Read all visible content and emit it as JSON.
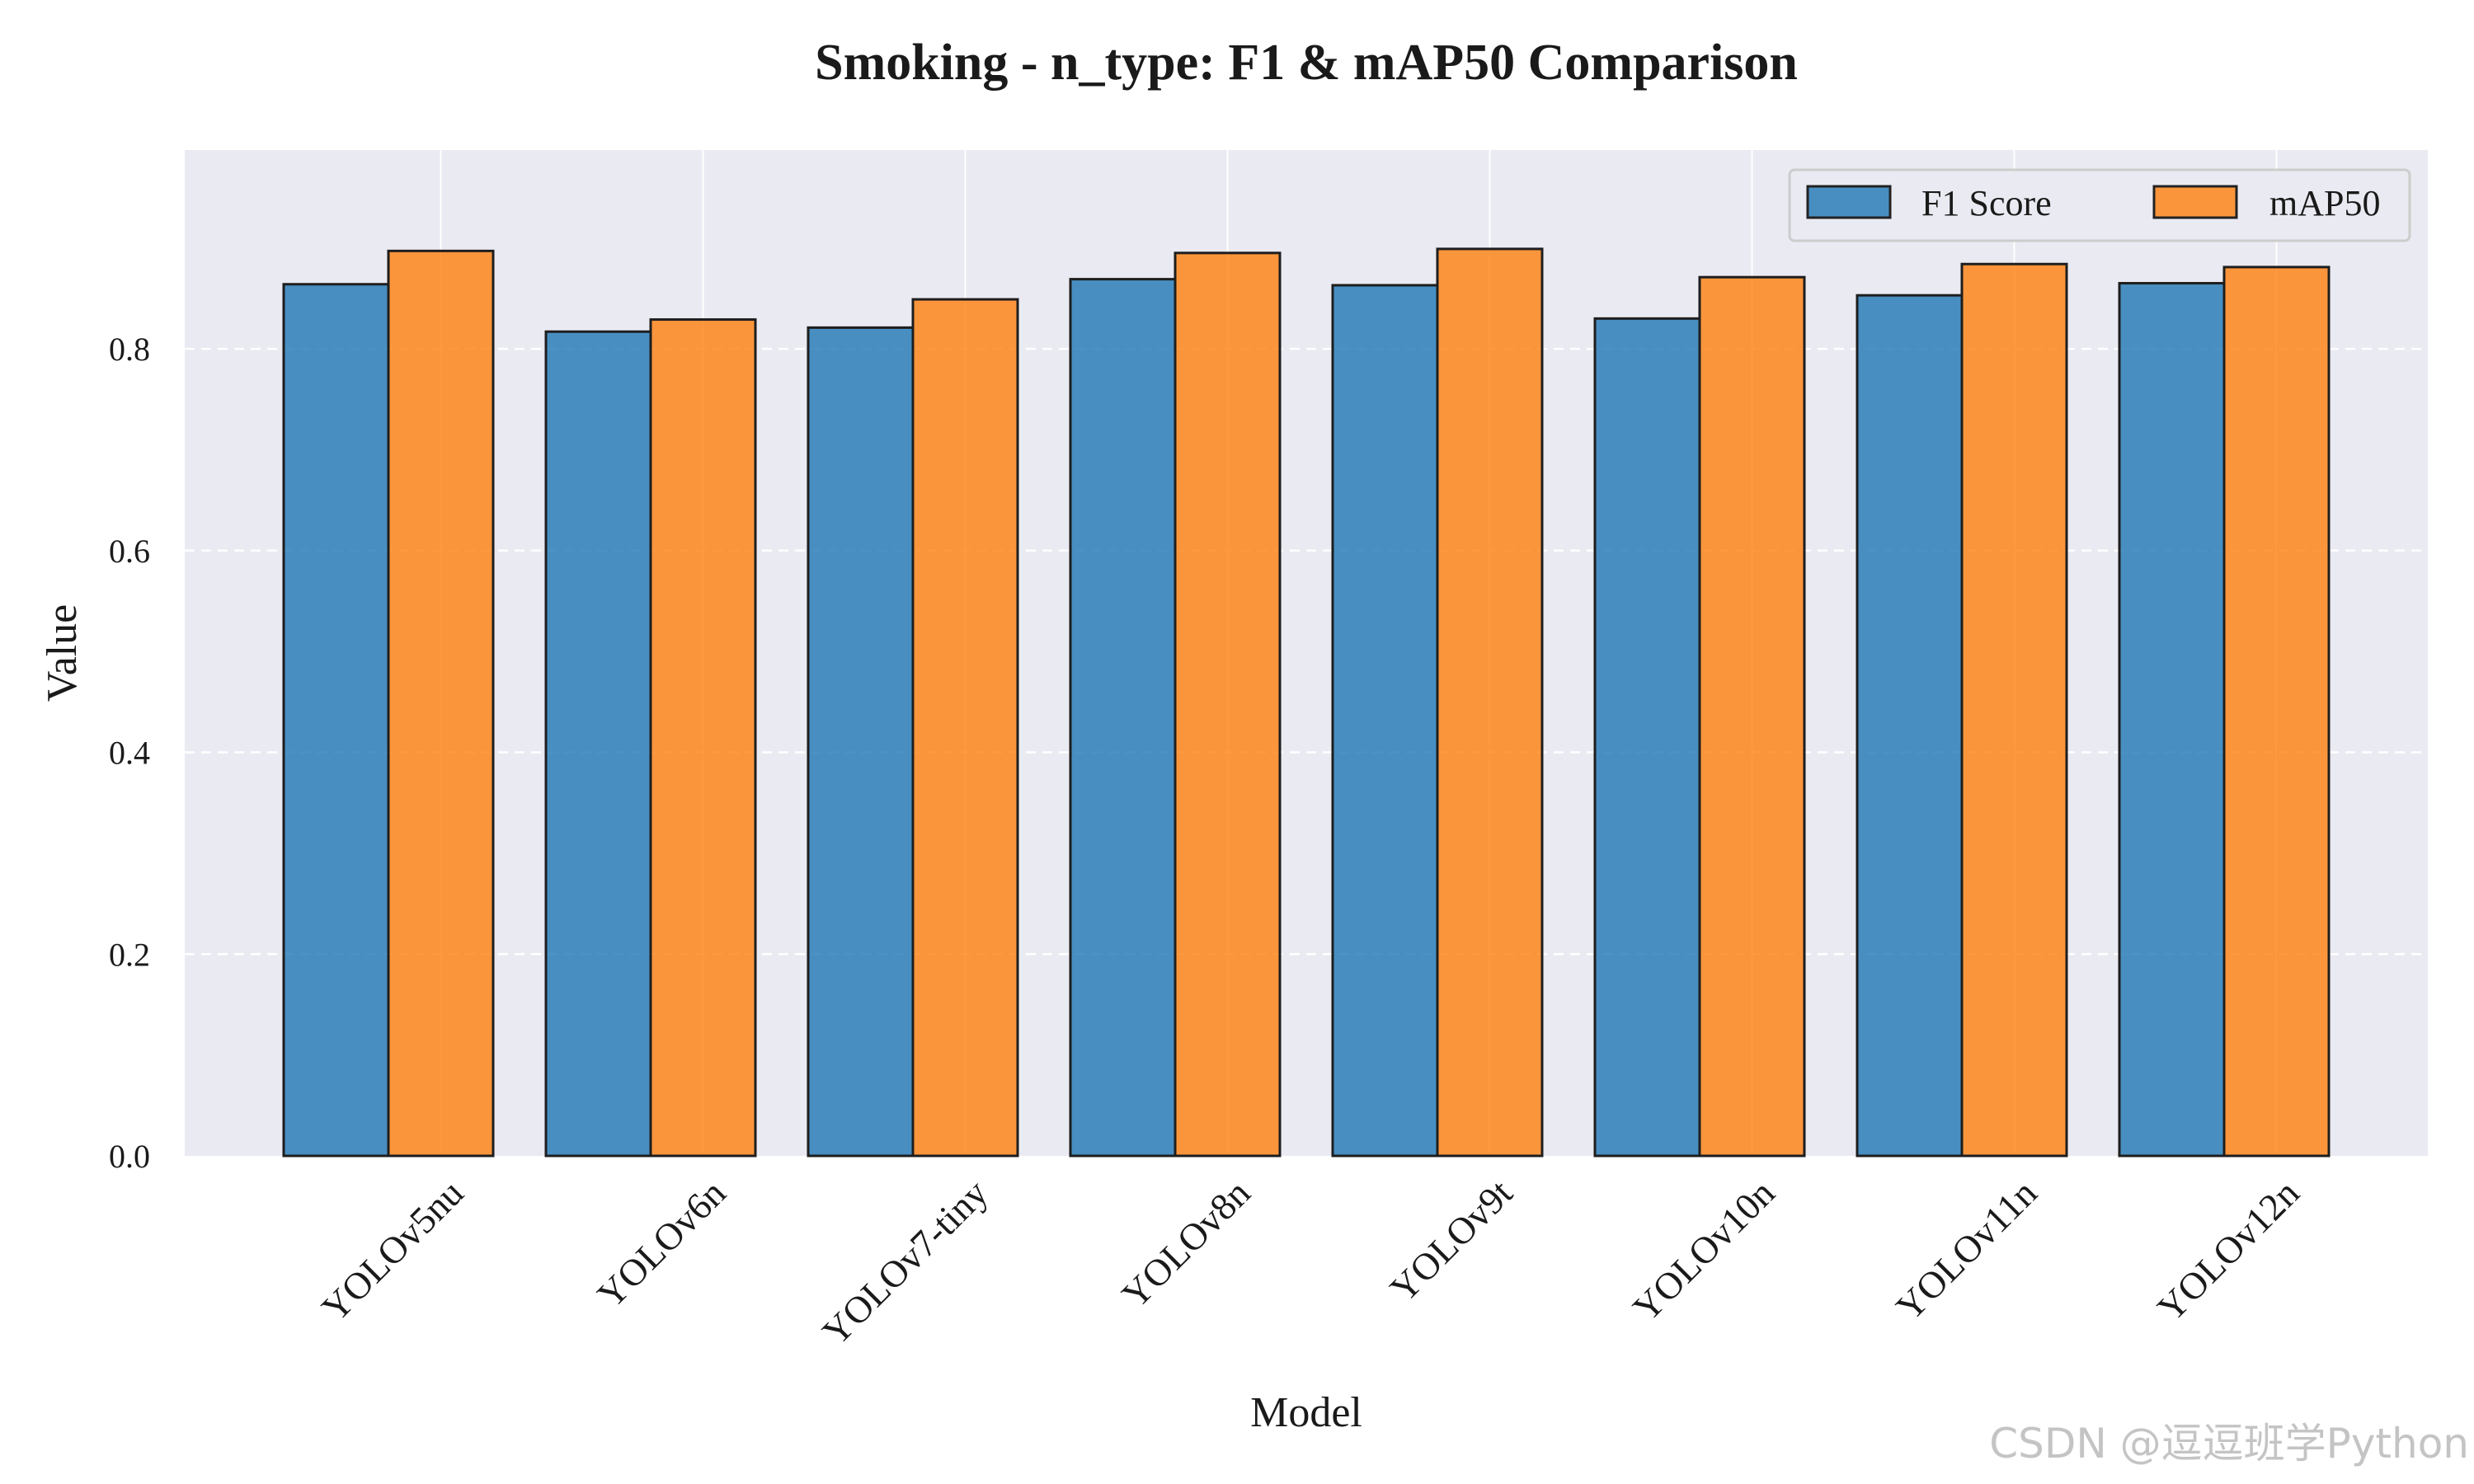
{
  "chart_data": {
    "type": "bar",
    "title": "Smoking - n_type: F1 & mAP50 Comparison",
    "xlabel": "Model",
    "ylabel": "Value",
    "categories": [
      "YOLOv5nu",
      "YOLOv6n",
      "YOLOv7-tiny",
      "YOLOv8n",
      "YOLOv9t",
      "YOLOv10n",
      "YOLOv11n",
      "YOLOv12n"
    ],
    "series": [
      {
        "name": "F1 Score",
        "color": "#1f77b4",
        "values": [
          0.864,
          0.817,
          0.821,
          0.869,
          0.863,
          0.83,
          0.853,
          0.865
        ]
      },
      {
        "name": "mAP50",
        "color": "#ff7f0e",
        "values": [
          0.897,
          0.829,
          0.849,
          0.895,
          0.899,
          0.871,
          0.884,
          0.881
        ]
      }
    ],
    "ylim": [
      0,
      0.997
    ],
    "yticks": [
      "0.0",
      "0.2",
      "0.4",
      "0.6",
      "0.8"
    ],
    "grid": true,
    "legend_position": "top-right",
    "background": "#eaeaf2"
  },
  "watermark": "CSDN @逗逗班学Python"
}
